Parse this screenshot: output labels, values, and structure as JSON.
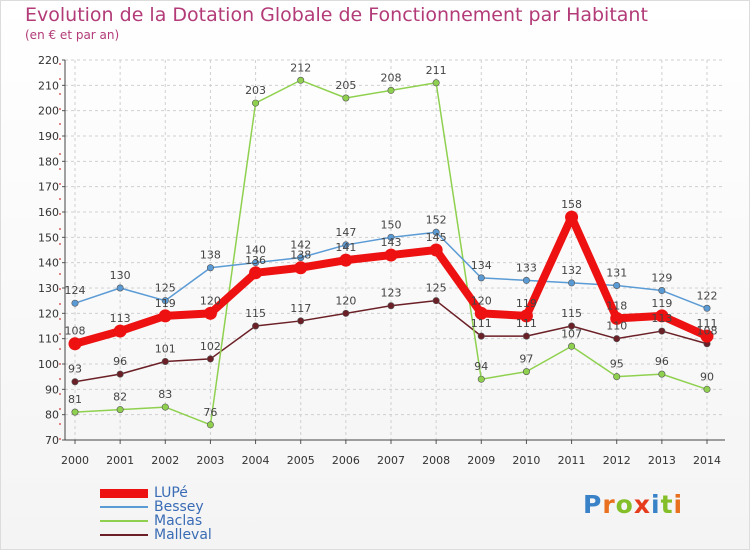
{
  "chart_data": {
    "type": "line",
    "title": "Evolution de la Dotation Globale de Fonctionnement par Habitant",
    "subtitle": "(en € et par an)",
    "xlabel": "",
    "ylabel": "",
    "ylim": [
      70,
      220
    ],
    "yticks": [
      70,
      80,
      90,
      100,
      110,
      120,
      130,
      140,
      150,
      160,
      170,
      180,
      190,
      200,
      210,
      220
    ],
    "categories": [
      "2000",
      "2001",
      "2002",
      "2003",
      "2004",
      "2005",
      "2006",
      "2007",
      "2008",
      "2009",
      "2010",
      "2011",
      "2012",
      "2013",
      "2014"
    ],
    "series": [
      {
        "name": "Malleval",
        "color": "#6b1f26",
        "width": 1.5,
        "marker": 3.2,
        "values": [
          93,
          96,
          101,
          102,
          115,
          117,
          120,
          123,
          125,
          111,
          111,
          115,
          110,
          113,
          108
        ],
        "labels": [
          "93",
          "96",
          "101",
          "102",
          "115",
          "117",
          "120",
          "123",
          "125",
          "111",
          "111",
          "115",
          "110",
          "113",
          "108"
        ]
      },
      {
        "name": "Maclas",
        "color": "#8fd14f",
        "width": 1.5,
        "marker": 3.2,
        "values": [
          81,
          82,
          83,
          76,
          203,
          212,
          205,
          208,
          211,
          94,
          97,
          107,
          95,
          96,
          90
        ],
        "labels": [
          "81",
          "82",
          "83",
          "76",
          "203",
          "212",
          "205",
          "208",
          "211",
          "94",
          "97",
          "107",
          "95",
          "96",
          "90"
        ]
      },
      {
        "name": "Bessey",
        "color": "#5b9bd5",
        "width": 1.5,
        "marker": 3.2,
        "values": [
          124,
          130,
          125,
          138,
          140,
          142,
          147,
          150,
          152,
          134,
          133,
          132,
          131,
          129,
          122
        ],
        "labels": [
          "124",
          "130",
          "125",
          "138",
          "140",
          "142",
          "147",
          "150",
          "152",
          "134",
          "133",
          "132",
          "131",
          "129",
          "122"
        ]
      },
      {
        "name": "LUPé",
        "color": "#ee1111",
        "width": 8,
        "marker": 6.5,
        "values": [
          108,
          113,
          119,
          120,
          136,
          138,
          141,
          143,
          145,
          120,
          119,
          158,
          118,
          119,
          111
        ],
        "labels": [
          "108",
          "113",
          "119",
          "120",
          "136",
          "138",
          "141",
          "143",
          "145",
          "120",
          "119",
          "158",
          "118",
          "119",
          "111"
        ]
      }
    ],
    "legend": [
      "LUPé",
      "Bessey",
      "Maclas",
      "Malleval"
    ],
    "legend_position": "bottom-left"
  },
  "logo": {
    "text": "Proxiti",
    "letters": [
      "P",
      "r",
      "o",
      "x",
      "i",
      "t",
      "i"
    ],
    "colors": [
      "#3a82c8",
      "#e8701e",
      "#84bf2a",
      "#e63c1d",
      "#3a82c8",
      "#84bf2a",
      "#e8701e"
    ]
  }
}
